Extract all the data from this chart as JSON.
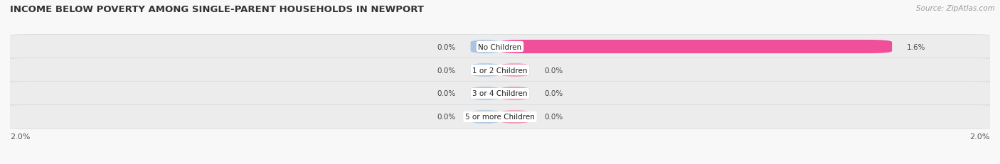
{
  "title": "INCOME BELOW POVERTY AMONG SINGLE-PARENT HOUSEHOLDS IN NEWPORT",
  "source": "Source: ZipAtlas.com",
  "categories": [
    "No Children",
    "1 or 2 Children",
    "3 or 4 Children",
    "5 or more Children"
  ],
  "single_father": [
    0.0,
    0.0,
    0.0,
    0.0
  ],
  "single_mother": [
    1.6,
    0.0,
    0.0,
    0.0
  ],
  "max_val": 2.0,
  "min_bar_width": 0.12,
  "father_color": "#a8c4e0",
  "mother_color": "#f090b0",
  "mother_color_bright": "#f0509a",
  "row_bg_color": "#ececec",
  "row_border_color": "#d8d8d8",
  "title_fontsize": 9.5,
  "source_fontsize": 7.5,
  "label_fontsize": 7.5,
  "value_fontsize": 7.5,
  "axis_label_fontsize": 8,
  "legend_fontsize": 8,
  "background_color": "#f8f8f8"
}
